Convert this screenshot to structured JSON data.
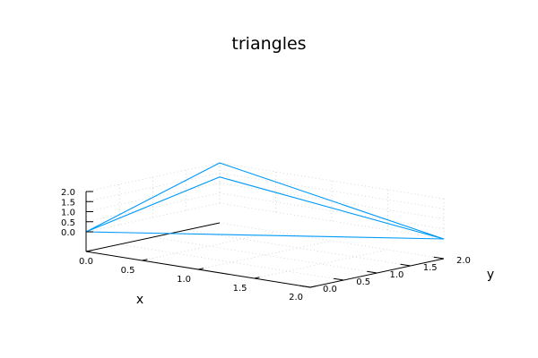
{
  "chart_data": {
    "type": "line3d",
    "title": "triangles",
    "xlabel": "x",
    "ylabel": "y",
    "zlabel": "",
    "xlim": [
      0,
      2
    ],
    "ylim": [
      0,
      2
    ],
    "zlim": [
      0,
      2
    ],
    "xticks": [
      "0.0",
      "0.5",
      "1.0",
      "1.5",
      "2.0"
    ],
    "yticks": [
      "0.0",
      "0.5",
      "1.0",
      "1.5",
      "2.0"
    ],
    "zticks": [
      "0.0",
      "0.5",
      "1.0",
      "1.5",
      "2.0"
    ],
    "grid": true,
    "series": [
      {
        "color": "#009af9",
        "points": [
          {
            "x": 0,
            "y": 0,
            "z": 0
          },
          {
            "x": 2,
            "y": 2,
            "z": 0
          },
          {
            "x": 0,
            "y": 2,
            "z": 2
          },
          {
            "x": 0,
            "y": 0,
            "z": 0
          },
          {
            "x": 0,
            "y": 2,
            "z": 1.3
          },
          {
            "x": 2,
            "y": 2,
            "z": 0
          }
        ]
      }
    ]
  }
}
